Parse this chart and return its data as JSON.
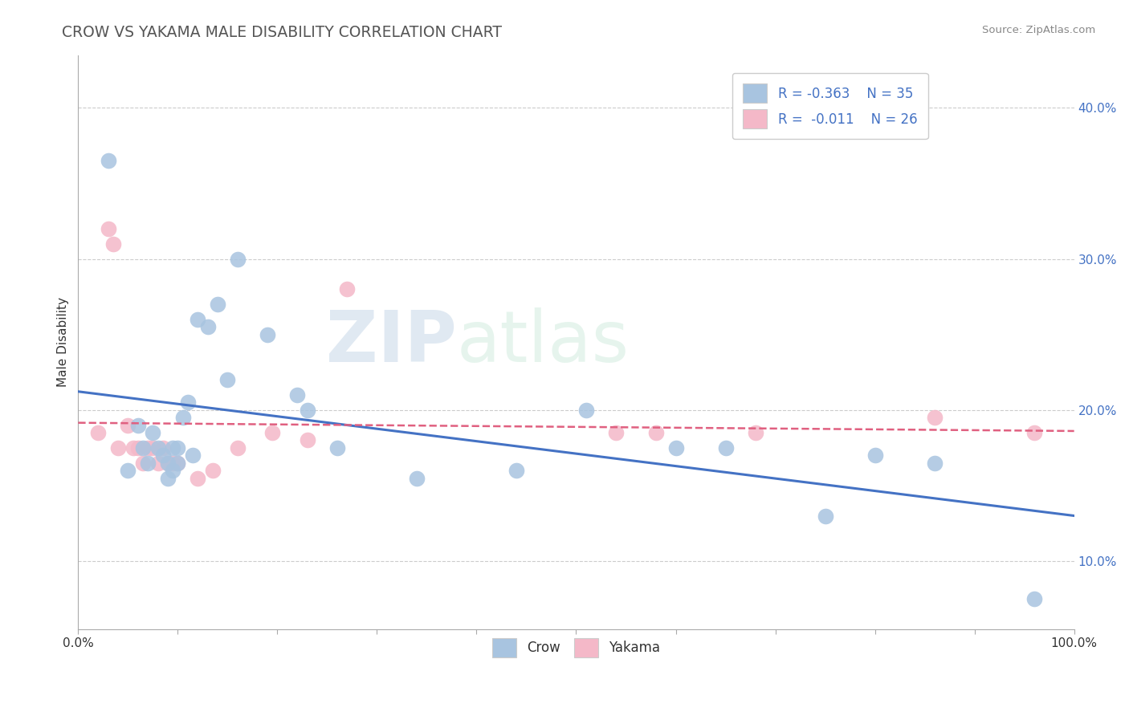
{
  "title": "CROW VS YAKAMA MALE DISABILITY CORRELATION CHART",
  "source": "Source: ZipAtlas.com",
  "ylabel": "Male Disability",
  "crow_label": "Crow",
  "yakama_label": "Yakama",
  "crow_R": -0.363,
  "crow_N": 35,
  "yakama_R": -0.011,
  "yakama_N": 26,
  "xlim": [
    0.0,
    1.0
  ],
  "ylim": [
    0.055,
    0.435
  ],
  "yticks": [
    0.1,
    0.2,
    0.3,
    0.4
  ],
  "ytick_labels": [
    "10.0%",
    "20.0%",
    "30.0%",
    "40.0%"
  ],
  "xticks": [
    0.0,
    0.1,
    0.2,
    0.3,
    0.4,
    0.5,
    0.6,
    0.7,
    0.8,
    0.9,
    1.0
  ],
  "xtick_labels": [
    "0.0%",
    "",
    "",
    "",
    "",
    "",
    "",
    "",
    "",
    "",
    "100.0%"
  ],
  "crow_color": "#a8c4e0",
  "yakama_color": "#f4b8c8",
  "crow_line_color": "#4472c4",
  "yakama_line_color": "#e06080",
  "watermark_zip": "ZIP",
  "watermark_atlas": "atlas",
  "crow_x": [
    0.03,
    0.05,
    0.06,
    0.065,
    0.07,
    0.075,
    0.08,
    0.085,
    0.09,
    0.09,
    0.095,
    0.095,
    0.1,
    0.1,
    0.105,
    0.11,
    0.115,
    0.12,
    0.13,
    0.14,
    0.15,
    0.16,
    0.19,
    0.22,
    0.23,
    0.26,
    0.34,
    0.44,
    0.51,
    0.6,
    0.65,
    0.75,
    0.8,
    0.86,
    0.96
  ],
  "crow_y": [
    0.365,
    0.16,
    0.19,
    0.175,
    0.165,
    0.185,
    0.175,
    0.17,
    0.155,
    0.165,
    0.16,
    0.175,
    0.175,
    0.165,
    0.195,
    0.205,
    0.17,
    0.26,
    0.255,
    0.27,
    0.22,
    0.3,
    0.25,
    0.21,
    0.2,
    0.175,
    0.155,
    0.16,
    0.2,
    0.175,
    0.175,
    0.13,
    0.17,
    0.165,
    0.075
  ],
  "yakama_x": [
    0.02,
    0.03,
    0.035,
    0.04,
    0.05,
    0.055,
    0.06,
    0.065,
    0.07,
    0.075,
    0.08,
    0.085,
    0.09,
    0.095,
    0.1,
    0.12,
    0.135,
    0.16,
    0.195,
    0.23,
    0.27,
    0.54,
    0.58,
    0.68,
    0.86,
    0.96
  ],
  "yakama_y": [
    0.185,
    0.32,
    0.31,
    0.175,
    0.19,
    0.175,
    0.175,
    0.165,
    0.175,
    0.175,
    0.165,
    0.175,
    0.165,
    0.165,
    0.165,
    0.155,
    0.16,
    0.175,
    0.185,
    0.18,
    0.28,
    0.185,
    0.185,
    0.185,
    0.195,
    0.185
  ]
}
